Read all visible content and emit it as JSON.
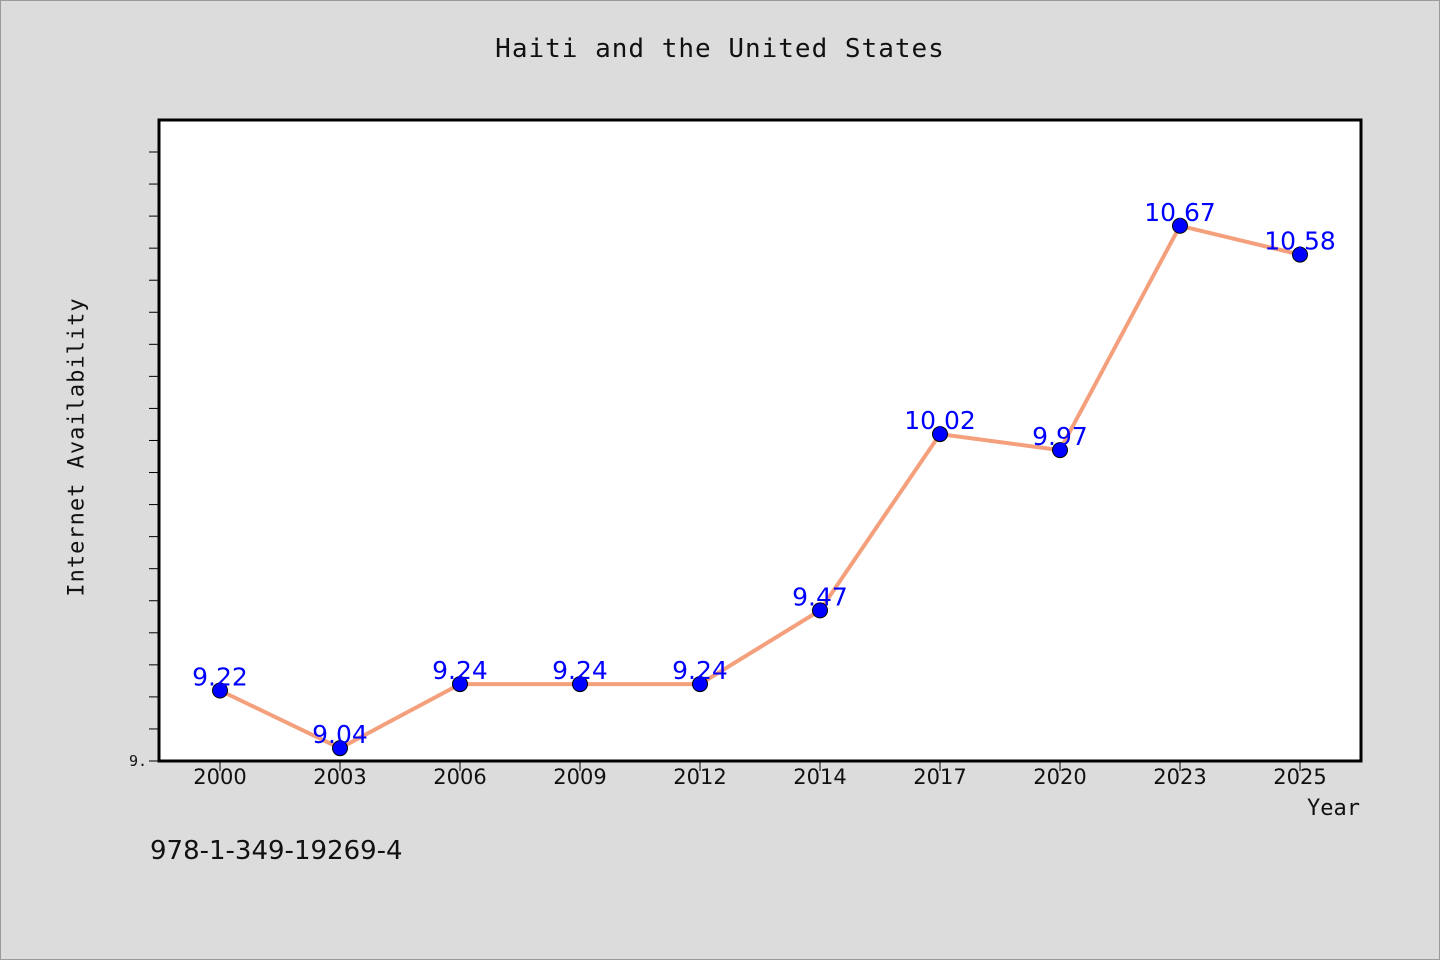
{
  "chart_data": {
    "type": "line",
    "title": "Haiti and the United States",
    "xlabel": "Year",
    "ylabel": "Internet Availability",
    "categories": [
      "2000",
      "2003",
      "2006",
      "2009",
      "2012",
      "2014",
      "2017",
      "2020",
      "2023",
      "2025"
    ],
    "series": [
      {
        "values": [
          9.22,
          9.04,
          9.24,
          9.24,
          9.24,
          9.47,
          10.02,
          9.97,
          10.67,
          10.58
        ],
        "line_color": "#f4a07c",
        "marker_color": "#0000ff"
      }
    ],
    "data_labels": [
      "9.22",
      "9.04",
      "9.24",
      "9.24",
      "9.24",
      "9.47",
      "10.02",
      "9.97",
      "10.67",
      "10.58"
    ],
    "ylim": [
      9.0,
      11.0
    ],
    "ytick_label": "9.",
    "grid": false,
    "legend": "none"
  },
  "footer_text": "978-1-349-19269-4"
}
